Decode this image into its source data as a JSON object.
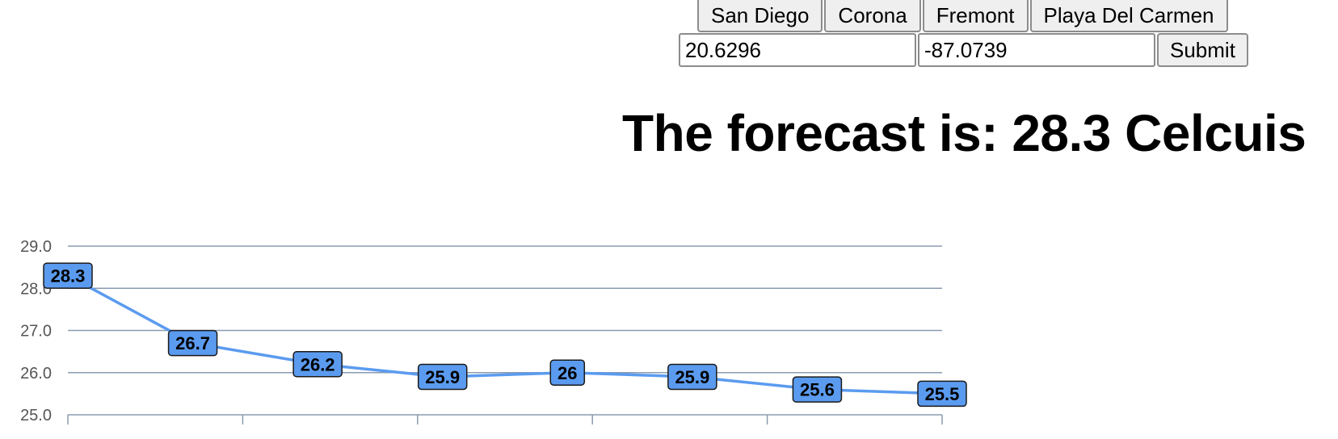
{
  "cities": [
    "San Diego",
    "Corona",
    "Fremont",
    "Playa Del Carmen"
  ],
  "coords": {
    "latitude": "20.6296",
    "longitude": "-87.0739"
  },
  "submit_label": "Submit",
  "forecast_text": "The forecast is: 28.3 Celcuis",
  "chart_data": {
    "type": "line",
    "values": [
      28.3,
      26.7,
      26.2,
      25.9,
      26,
      25.9,
      25.6,
      25.5
    ],
    "labels": [
      "28.3",
      "26.7",
      "26.2",
      "25.9",
      "26",
      "25.9",
      "25.6",
      "25.5"
    ],
    "ylim": [
      25.0,
      29.0
    ],
    "yticks": [
      "25.0",
      "26.0",
      "27.0",
      "28.0",
      "29.0"
    ],
    "grid": true,
    "colors": {
      "line": "#5b9bef",
      "label_fill": "#5b9bef",
      "gridline": "#8a9bb0",
      "axis_text": "#555555"
    }
  }
}
